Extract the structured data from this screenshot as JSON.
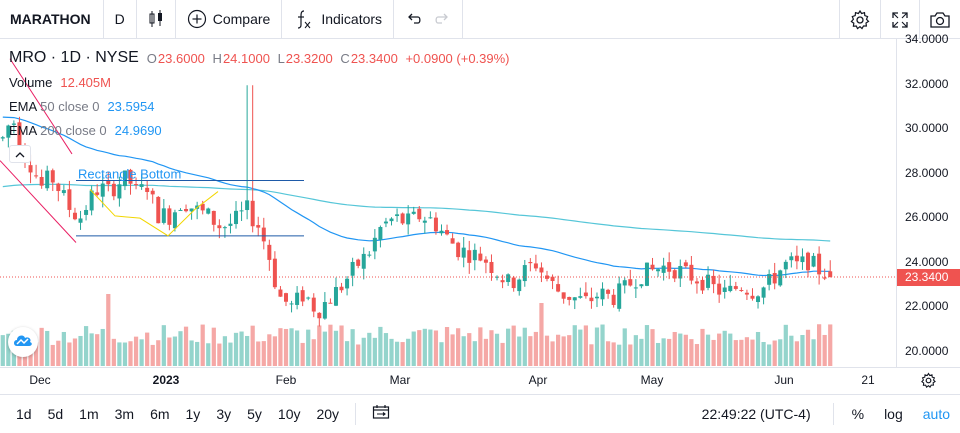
{
  "toolbar": {
    "symbol": "MARATHON",
    "interval": "D",
    "compare_label": "Compare",
    "indicators_label": "Indicators",
    "icons": [
      "candles-icon",
      "plus-circle-icon",
      "fx-icon",
      "undo-icon",
      "redo-icon",
      "gear-icon",
      "fullscreen-icon",
      "camera-icon"
    ]
  },
  "legend": {
    "title": "MRO · 1D · NYSE",
    "ohlc": [
      {
        "k": "O",
        "v": "23.6000"
      },
      {
        "k": "H",
        "v": "24.1000"
      },
      {
        "k": "L",
        "v": "23.3200"
      },
      {
        "k": "C",
        "v": "23.3400"
      }
    ],
    "change": "+0.0900 (+0.39%)",
    "volume_label": "Volume",
    "volume_value": "12.405M",
    "ema50_label": "EMA",
    "ema50_params": "50 close 0",
    "ema50_value": "23.5954",
    "ema200_label": "EMA",
    "ema200_params": "200 close 0",
    "ema200_value": "24.9690"
  },
  "drawing": {
    "rectangle_label": "Rectangle Bottom"
  },
  "price_axis": [
    "34.0000",
    "32.0000",
    "30.0000",
    "28.0000",
    "26.0000",
    "24.0000",
    "22.0000",
    "20.0000"
  ],
  "last_price": "23.3400",
  "time_axis": [
    {
      "label": "Dec",
      "bold": false
    },
    {
      "label": "2023",
      "bold": true
    },
    {
      "label": "Feb",
      "bold": false
    },
    {
      "label": "Mar",
      "bold": false
    },
    {
      "label": "Apr",
      "bold": false
    },
    {
      "label": "May",
      "bold": false
    },
    {
      "label": "Jun",
      "bold": false
    },
    {
      "label": "21",
      "bold": false
    }
  ],
  "bottombar": {
    "ranges": [
      "1d",
      "5d",
      "1m",
      "3m",
      "6m",
      "1y",
      "3y",
      "5y",
      "10y",
      "20y"
    ],
    "clock": "22:49:22 (UTC-4)",
    "percent_label": "%",
    "log_label": "log",
    "auto_label": "auto"
  },
  "colors": {
    "up": "#26a69a",
    "down": "#ef5350",
    "vol_up": "#94d4cc",
    "vol_down": "#f5a8a6",
    "ema50": "#2196f3",
    "ema200": "#56c6d8",
    "accent": "#2196f3"
  },
  "chart_data": {
    "type": "candlestick",
    "symbol": "MRO",
    "interval": "1D",
    "exchange": "NYSE",
    "ylim": [
      19.5,
      34.4
    ],
    "price_ticks": [
      20,
      22,
      24,
      26,
      28,
      30,
      32,
      34
    ],
    "x_ticks": [
      "Dec",
      "2023",
      "Feb",
      "Mar",
      "Apr",
      "May",
      "Jun",
      "21"
    ],
    "legend_placement": "top-left",
    "grid": false,
    "last_value": 23.34,
    "series": [
      {
        "name": "Volume",
        "type": "volume"
      },
      {
        "name": "EMA 50 close 0",
        "type": "line",
        "last": 23.5954
      },
      {
        "name": "EMA 200 close 0",
        "type": "line",
        "last": 24.969
      }
    ],
    "annotations": [
      {
        "type": "rectangle",
        "label": "Rectangle Bottom",
        "top": 27.7,
        "bottom": 25.2
      },
      {
        "type": "pattern",
        "shape": "W-bottom"
      },
      {
        "type": "trendline",
        "color": "pink"
      }
    ]
  }
}
